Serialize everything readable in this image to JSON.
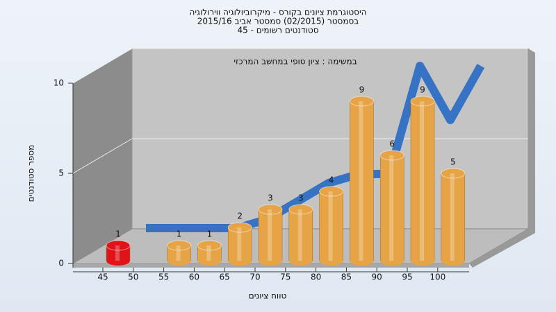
{
  "chart_data": {
    "type": "bar",
    "title_lines": [
      "היסטוגרמת ציונים בקורס - מיקרוביולוגיה ווירולוגיה",
      "בסמסטר  (02/2015)  סמסטר אביב 2015/16",
      "סטודנטים רשומים - 45"
    ],
    "subtitle": "במשימה : ציון סופי במחשב המרכזי",
    "x_label": "טווח ציונים",
    "y_label": "מספר סטודנטים",
    "categories": [
      "45",
      "50",
      "55",
      "60",
      "65",
      "70",
      "75",
      "80",
      "85",
      "90",
      "95",
      "100"
    ],
    "values": [
      1,
      null,
      1,
      1,
      2,
      3,
      3,
      4,
      9,
      6,
      9,
      5
    ],
    "colors": [
      "#e01418",
      null,
      "#e6a447",
      "#e6a447",
      "#e6a447",
      "#e6a447",
      "#e6a447",
      "#e6a447",
      "#e6a447",
      "#e6a447",
      "#e6a447",
      "#e6a447"
    ],
    "trend": {
      "color": "#2f6fc4",
      "values": [
        1,
        1,
        1,
        1,
        1.5,
        2.5,
        3.5,
        4,
        4,
        10,
        7,
        10
      ]
    },
    "ylim": [
      0,
      10
    ],
    "yticks": [
      0,
      5,
      10
    ],
    "grid": true
  }
}
